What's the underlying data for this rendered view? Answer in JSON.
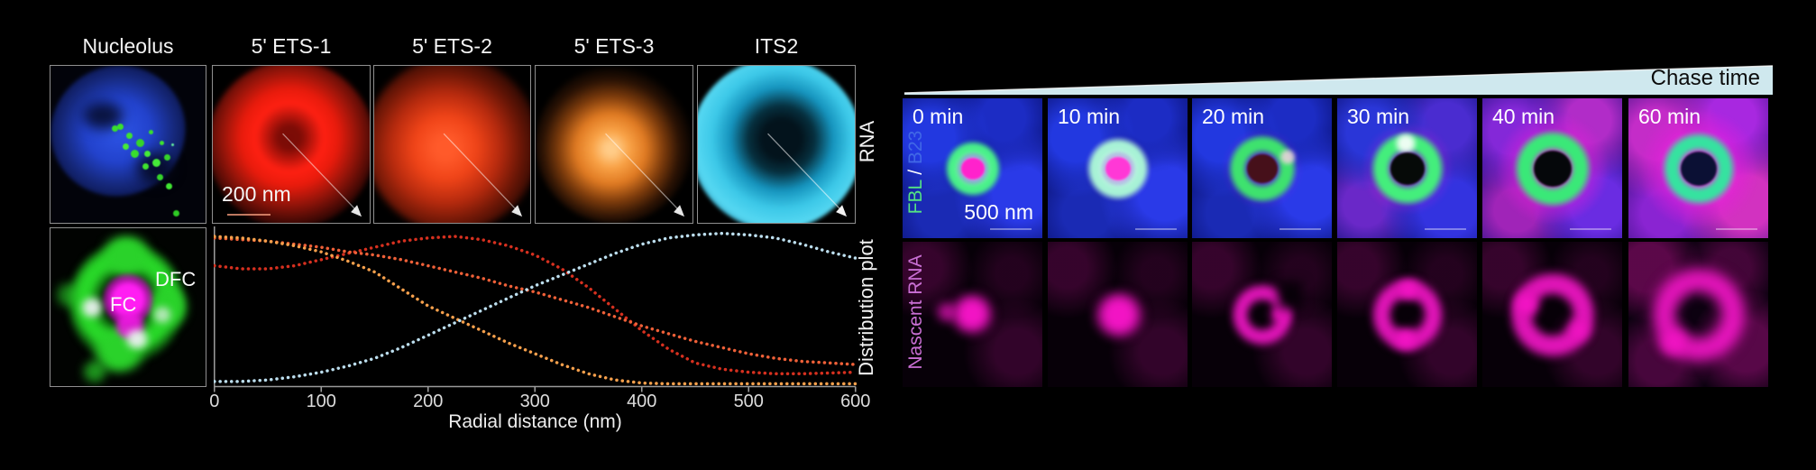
{
  "left": {
    "column_titles": [
      "Nucleolus",
      "5' ETS-1",
      "5' ETS-2",
      "5' ETS-3",
      "ITS2"
    ],
    "row1_axis_label": "RNA",
    "row2_axis_label": "Distribution plot",
    "scale_bar_label": "200 nm",
    "dfc_label": "DFC",
    "fc_label": "FC"
  },
  "chart_data": {
    "type": "line",
    "style": "dotted",
    "title": "",
    "xlabel": "Radial distance (nm)",
    "ylabel": "Distribution plot",
    "xlim": [
      0,
      600
    ],
    "ylim": [
      0,
      1
    ],
    "grid": false,
    "legend_position": "none",
    "xticks": [
      0,
      100,
      200,
      300,
      400,
      500,
      600
    ],
    "x": [
      0,
      25,
      50,
      75,
      100,
      125,
      150,
      175,
      200,
      225,
      250,
      275,
      300,
      325,
      350,
      375,
      400,
      425,
      450,
      475,
      500,
      525,
      550,
      575,
      600
    ],
    "series": [
      {
        "name": "5' ETS-1",
        "color": "#d6301f",
        "values": [
          0.78,
          0.76,
          0.76,
          0.78,
          0.82,
          0.86,
          0.9,
          0.94,
          0.96,
          0.97,
          0.95,
          0.91,
          0.85,
          0.76,
          0.64,
          0.5,
          0.36,
          0.24,
          0.15,
          0.11,
          0.09,
          0.08,
          0.08,
          0.085,
          0.09
        ]
      },
      {
        "name": "5' ETS-2",
        "color": "#ef6038",
        "values": [
          0.96,
          0.95,
          0.94,
          0.92,
          0.9,
          0.87,
          0.85,
          0.82,
          0.78,
          0.74,
          0.7,
          0.65,
          0.61,
          0.56,
          0.51,
          0.45,
          0.39,
          0.34,
          0.29,
          0.25,
          0.21,
          0.18,
          0.16,
          0.15,
          0.14
        ]
      },
      {
        "name": "5' ETS-3",
        "color": "#f6a04c",
        "values": [
          0.97,
          0.96,
          0.94,
          0.91,
          0.87,
          0.81,
          0.74,
          0.63,
          0.52,
          0.44,
          0.36,
          0.28,
          0.21,
          0.14,
          0.08,
          0.04,
          0.02,
          0.015,
          0.015,
          0.015,
          0.015,
          0.015,
          0.015,
          0.015,
          0.015
        ]
      },
      {
        "name": "ITS2",
        "color": "#bcdeee",
        "values": [
          0.03,
          0.03,
          0.04,
          0.06,
          0.09,
          0.13,
          0.18,
          0.25,
          0.33,
          0.41,
          0.49,
          0.57,
          0.65,
          0.72,
          0.79,
          0.86,
          0.92,
          0.96,
          0.98,
          0.99,
          0.98,
          0.96,
          0.92,
          0.87,
          0.83
        ]
      }
    ]
  },
  "right": {
    "chase_time_label": "Chase time",
    "time_labels": [
      "0 min",
      "10 min",
      "20 min",
      "30 min",
      "40 min",
      "60 min"
    ],
    "channel_label": {
      "fbl": "FBL",
      "separator": " / ",
      "b23": "B23"
    },
    "row2_label": "Nascent RNA",
    "scale_bar_label": "500 nm"
  },
  "colors": {
    "chase_wedge": "#cfe8ee",
    "fbl_green": "#54e383",
    "b23_blue": "#4168e6",
    "nascent_magenta": "#c96fd4",
    "ets1_red": "#d6301f",
    "ets2_orangered": "#ef6038",
    "ets3_orange": "#f6a04c",
    "its2_pale_blue": "#bcdeee"
  }
}
